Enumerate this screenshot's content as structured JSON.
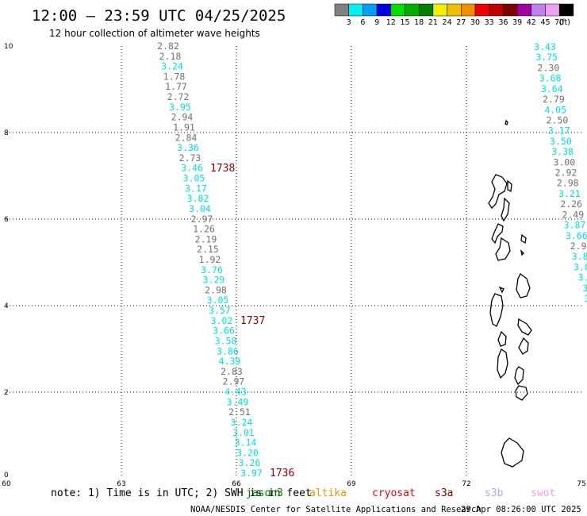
{
  "header": {
    "title": "12:00 – 23:59 UTC 04/25/2025",
    "subtitle": "12 hour collection of altimeter wave heights"
  },
  "color_scale": {
    "colors": [
      "#808080",
      "#00f0f0",
      "#00a0f0",
      "#0000e0",
      "#00e000",
      "#00b000",
      "#008000",
      "#f0f000",
      "#f0c000",
      "#f09000",
      "#f00000",
      "#c00000",
      "#800000",
      "#a000a0",
      "#c080f0",
      "#f0a0f0",
      "#000000"
    ],
    "labels": [
      "3",
      "6",
      "9",
      "12",
      "15",
      "18",
      "21",
      "24",
      "27",
      "30",
      "33",
      "36",
      "39",
      "42",
      "45",
      "70"
    ],
    "unit": "(ft)"
  },
  "axes": {
    "x_ticks": [
      "60",
      "63",
      "66",
      "69",
      "72",
      "75"
    ],
    "y_ticks": [
      "0",
      "2",
      "4",
      "6",
      "8",
      "10"
    ]
  },
  "observations": {
    "track_left": {
      "heights": [
        "3.97",
        "3.26",
        "3.20",
        "3.14",
        "3.01",
        "3.24",
        "2.51",
        "3.49",
        "4.43",
        "2.97",
        "2.83",
        "4.39",
        "3.86",
        "3.58",
        "3.66",
        "3.02",
        "3.57",
        "3.05",
        "2.98",
        "3.29",
        "3.76",
        "1.92",
        "2.15",
        "2.19",
        "1.26",
        "2.97",
        "3.04",
        "3.82",
        "3.17",
        "3.05",
        "3.46",
        "2.73",
        "3.36",
        "2.84",
        "1.91",
        "2.94",
        "3.95",
        "2.72",
        "1.77",
        "1.78",
        "3.24",
        "2.18",
        "2.82"
      ],
      "colors": [
        "c",
        "c",
        "c",
        "c",
        "c",
        "c",
        "g",
        "c",
        "c",
        "g",
        "g",
        "c",
        "c",
        "c",
        "c",
        "c",
        "c",
        "c",
        "g",
        "c",
        "c",
        "g",
        "g",
        "g",
        "g",
        "g",
        "c",
        "c",
        "c",
        "c",
        "c",
        "g",
        "c",
        "g",
        "g",
        "g",
        "c",
        "g",
        "g",
        "g",
        "c",
        "g",
        "g"
      ]
    },
    "track_right": {
      "heights": [
        "3.43",
        "3.75",
        "2.30",
        "3.68",
        "3.64",
        "2.79",
        "4.05",
        "2.50",
        "3.17",
        "3.50",
        "3.38",
        "3.00",
        "2.92",
        "2.98",
        "3.21",
        "2.26",
        "2.49",
        "3.87",
        "3.66",
        "2.9",
        "3.8",
        "3.8",
        "3.",
        "3",
        "3"
      ],
      "colors": [
        "c",
        "c",
        "g",
        "c",
        "c",
        "g",
        "c",
        "g",
        "c",
        "c",
        "c",
        "g",
        "g",
        "g",
        "c",
        "g",
        "g",
        "c",
        "c",
        "g",
        "c",
        "c",
        "c",
        "c",
        "c"
      ]
    },
    "time_labels": [
      "1736",
      "1737",
      "1738"
    ]
  },
  "footer": {
    "note": "note:  1) Time is in UTC; 2) SWH is in feet",
    "satellites": [
      {
        "name": "jason3",
        "color": "#008000"
      },
      {
        "name": "altika",
        "color": "#f09000"
      },
      {
        "name": "cryosat",
        "color": "#f00000"
      },
      {
        "name": "s3a",
        "color": "#800000"
      },
      {
        "name": "s3b",
        "color": "#c0a0f0"
      },
      {
        "name": "swot",
        "color": "#f0a0f0"
      }
    ],
    "credit": "NOAA/NESDIS Center for Satellite Applications and Research",
    "timestamp": "29 Apr 08:26:00 UTC 2025"
  }
}
